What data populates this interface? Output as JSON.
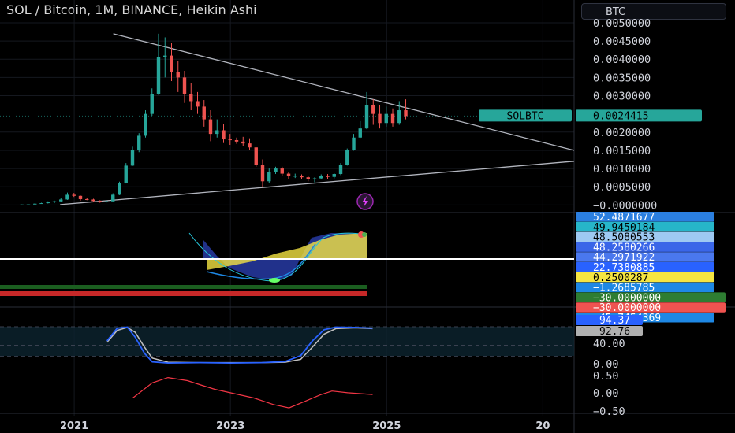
{
  "header": {
    "title": "SOL / Bitcoin, 1M, BINANCE, Heikin Ashi",
    "currency": "BTC"
  },
  "colors": {
    "up": "#26a69a",
    "down": "#ef5350",
    "trendline": "#b2b5be",
    "badge": "#26a69a",
    "stoch_k": "#2962ff",
    "stoch_d": "#c0c0c0",
    "osc_line": "#f23645"
  },
  "chart_data": {
    "type": "candlestick",
    "symbol_label": "SOLBTC",
    "last_price_label": "0.0024415",
    "last_price": 0.0024415,
    "price_axis": {
      "ticks": [
        "0.0050000",
        "0.0045000",
        "0.0040000",
        "0.0035000",
        "0.0030000",
        "0.0020000",
        "0.0015000",
        "0.0010000",
        "0.0005000",
        "−0.0000000"
      ],
      "tick_values": [
        0.005,
        0.0045,
        0.004,
        0.0035,
        0.003,
        0.002,
        0.0015,
        0.001,
        0.0005,
        0.0
      ],
      "ylim": [
        -0.0001,
        0.00515
      ]
    },
    "x_axis": {
      "ticks": [
        "2021",
        "2023",
        "2025",
        "20"
      ],
      "tick_years": [
        2021.0,
        2023.0,
        2025.0,
        2027.0
      ],
      "xlim": [
        2020.05,
        2027.4
      ]
    },
    "candles_start": 2020.33,
    "candles_month_step": 0.0833,
    "candles": [
      [
        1.1e-05,
        1.5e-05,
        9e-06,
        1.3e-05
      ],
      [
        1.3e-05,
        1.8e-05,
        1.2e-05,
        1.6e-05
      ],
      [
        1.6e-05,
        4.5e-05,
        1.5e-05,
        3.5e-05
      ],
      [
        3.5e-05,
        6e-05,
        3e-05,
        5e-05
      ],
      [
        5e-05,
        0.0001,
        4e-05,
        8e-05
      ],
      [
        8e-05,
        0.00012,
        5e-05,
        0.0001
      ],
      [
        0.0001,
        0.00019,
        9e-05,
        0.00015
      ],
      [
        0.00015,
        0.00034,
        0.00014,
        0.00028
      ],
      [
        0.00028,
        0.00033,
        0.00022,
        0.00025
      ],
      [
        0.00025,
        0.00026,
        0.00012,
        0.00016
      ],
      [
        0.00016,
        0.00019,
        0.00013,
        0.00015
      ],
      [
        0.00015,
        0.00017,
        8e-05,
        0.00011
      ],
      [
        0.00011,
        0.00013,
        6e-05,
        9e-05
      ],
      [
        9e-05,
        0.00012,
        7e-05,
        0.0001
      ],
      [
        0.0001,
        0.00032,
        0.0001,
        0.00028
      ],
      [
        0.00028,
        0.00064,
        0.00027,
        0.0006
      ],
      [
        0.0006,
        0.00115,
        0.00059,
        0.00108
      ],
      [
        0.00108,
        0.0016,
        0.00107,
        0.00152
      ],
      [
        0.00152,
        0.00197,
        0.00145,
        0.0019
      ],
      [
        0.0019,
        0.0026,
        0.00185,
        0.0025
      ],
      [
        0.0025,
        0.0032,
        0.00245,
        0.00305
      ],
      [
        0.00305,
        0.0047,
        0.00302,
        0.00405
      ],
      [
        0.00405,
        0.0046,
        0.0035,
        0.0041
      ],
      [
        0.0041,
        0.00445,
        0.0034,
        0.00365
      ],
      [
        0.00365,
        0.00395,
        0.0031,
        0.0035
      ],
      [
        0.0035,
        0.00368,
        0.0028,
        0.00305
      ],
      [
        0.00305,
        0.00335,
        0.0026,
        0.00285
      ],
      [
        0.00285,
        0.0031,
        0.0025,
        0.0027
      ],
      [
        0.0027,
        0.00288,
        0.00215,
        0.00235
      ],
      [
        0.00235,
        0.0026,
        0.00175,
        0.00195
      ],
      [
        0.00195,
        0.00235,
        0.00185,
        0.00205
      ],
      [
        0.00205,
        0.00222,
        0.0017,
        0.0018
      ],
      [
        0.0018,
        0.00195,
        0.00165,
        0.00178
      ],
      [
        0.00178,
        0.00185,
        0.00168,
        0.00174
      ],
      [
        0.00174,
        0.00187,
        0.00162,
        0.00169
      ],
      [
        0.00169,
        0.00183,
        0.0015,
        0.00158
      ],
      [
        0.00158,
        0.00158,
        0.00105,
        0.0011
      ],
      [
        0.0011,
        0.00125,
        0.0005,
        0.00065
      ],
      [
        0.00065,
        0.001,
        0.0006,
        0.0009
      ],
      [
        0.0009,
        0.00105,
        0.00085,
        0.001
      ],
      [
        0.001,
        0.00105,
        0.0008,
        0.00086
      ],
      [
        0.00086,
        0.0009,
        0.00072,
        0.00079
      ],
      [
        0.00079,
        0.00086,
        0.00074,
        0.0008
      ],
      [
        0.0008,
        0.00084,
        0.00072,
        0.00076
      ],
      [
        0.00076,
        0.0008,
        0.00065,
        0.0007
      ],
      [
        0.0007,
        0.00076,
        0.00062,
        0.00073
      ],
      [
        0.00073,
        0.00084,
        0.0007,
        0.0008
      ],
      [
        0.0008,
        0.00085,
        0.00071,
        0.00077
      ],
      [
        0.00077,
        0.00087,
        0.00073,
        0.00085
      ],
      [
        0.00085,
        0.00115,
        0.00082,
        0.0011
      ],
      [
        0.0011,
        0.00155,
        0.00108,
        0.0015
      ],
      [
        0.0015,
        0.00195,
        0.00149,
        0.00185
      ],
      [
        0.00185,
        0.0023,
        0.00184,
        0.0021
      ],
      [
        0.0021,
        0.0031,
        0.00208,
        0.00275
      ],
      [
        0.00275,
        0.0029,
        0.0022,
        0.0025
      ],
      [
        0.0025,
        0.00275,
        0.0021,
        0.00225
      ],
      [
        0.00225,
        0.0027,
        0.00215,
        0.0025
      ],
      [
        0.0025,
        0.00265,
        0.00215,
        0.00225
      ],
      [
        0.00225,
        0.00285,
        0.0022,
        0.0026
      ],
      [
        0.0026,
        0.0029,
        0.00235,
        0.0024415
      ]
    ],
    "trendlines": [
      {
        "from": [
          2021.5,
          0.0047
        ],
        "to": [
          2027.4,
          0.0015
        ]
      },
      {
        "from": [
          2020.82,
          1e-05
        ],
        "to": [
          2027.4,
          0.0012
        ]
      }
    ],
    "osc_badges": [
      {
        "label": "52.4871677",
        "color": "#2b7fe0",
        "text": "#ffffff"
      },
      {
        "label": "49.9450184",
        "color": "#26b6c9",
        "text": "#000000"
      },
      {
        "label": "48.5080553",
        "color": "#9ec9f2",
        "text": "#000000"
      },
      {
        "label": "48.2580266",
        "color": "#3a66e8",
        "text": "#ffffff"
      },
      {
        "label": "44.2971922",
        "color": "#4a78ee",
        "text": "#ffffff"
      },
      {
        "label": "22.7380885",
        "color": "#2962ff",
        "text": "#ffffff"
      },
      {
        "label": "0.2500287",
        "color": "#f5e542",
        "text": "#000000"
      },
      {
        "label": "−1.2685785",
        "color": "#1e88e5",
        "text": "#ffffff"
      },
      {
        "label": "−30.0000000",
        "color": "#2e7d32",
        "text": "#ffffff"
      },
      {
        "label": "−30.0000000",
        "color": "#ef5350",
        "text": "#ffffff"
      },
      {
        "label": "−45.7454369",
        "color": "#1e88e5",
        "text": "#ffffff"
      }
    ],
    "stoch": {
      "ticks": [
        "40.00",
        "0.00"
      ],
      "k_label": "94.37",
      "d_label": "92.76",
      "k": [
        [
          2021.42,
          62
        ],
        [
          2021.55,
          96
        ],
        [
          2021.68,
          99
        ],
        [
          2021.78,
          72
        ],
        [
          2021.9,
          28
        ],
        [
          2022.0,
          5
        ],
        [
          2022.2,
          2
        ],
        [
          2022.6,
          3
        ],
        [
          2023.0,
          2
        ],
        [
          2023.4,
          3
        ],
        [
          2023.7,
          6
        ],
        [
          2023.9,
          22
        ],
        [
          2024.05,
          62
        ],
        [
          2024.2,
          92
        ],
        [
          2024.35,
          99
        ],
        [
          2024.6,
          98
        ],
        [
          2024.82,
          96
        ]
      ],
      "d": [
        [
          2021.42,
          58
        ],
        [
          2021.55,
          90
        ],
        [
          2021.68,
          98
        ],
        [
          2021.78,
          85
        ],
        [
          2021.9,
          45
        ],
        [
          2022.0,
          15
        ],
        [
          2022.2,
          4
        ],
        [
          2022.6,
          3
        ],
        [
          2023.0,
          3
        ],
        [
          2023.4,
          3
        ],
        [
          2023.7,
          4
        ],
        [
          2023.9,
          12
        ],
        [
          2024.05,
          45
        ],
        [
          2024.2,
          80
        ],
        [
          2024.35,
          95
        ],
        [
          2024.6,
          97
        ],
        [
          2024.82,
          95
        ]
      ]
    },
    "oscillator": {
      "ticks": [
        "0.50",
        "0.00",
        "−0.50"
      ],
      "line": [
        [
          2021.75,
          -0.1
        ],
        [
          2022.0,
          0.25
        ],
        [
          2022.2,
          0.37
        ],
        [
          2022.45,
          0.3
        ],
        [
          2022.62,
          0.2
        ],
        [
          2022.8,
          0.1
        ],
        [
          2023.05,
          0.0
        ],
        [
          2023.3,
          -0.1
        ],
        [
          2023.55,
          -0.25
        ],
        [
          2023.75,
          -0.33
        ],
        [
          2023.95,
          -0.18
        ],
        [
          2024.15,
          -0.03
        ],
        [
          2024.3,
          0.06
        ],
        [
          2024.5,
          0.02
        ],
        [
          2024.82,
          -0.02
        ]
      ]
    }
  }
}
